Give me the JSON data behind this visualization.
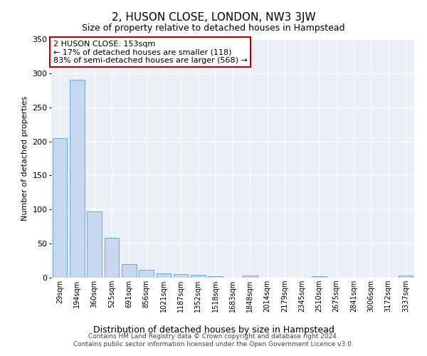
{
  "title": "2, HUSON CLOSE, LONDON, NW3 3JW",
  "subtitle": "Size of property relative to detached houses in Hampstead",
  "xlabel": "Distribution of detached houses by size in Hampstead",
  "ylabel": "Number of detached properties",
  "property_label": "2 HUSON CLOSE: 153sqm",
  "pct_smaller": 17,
  "n_smaller": 118,
  "pct_larger": 83,
  "n_larger": 568,
  "bar_color": "#c5d8f0",
  "bar_edge_color": "#6fa8d8",
  "highlight_color": "#c00000",
  "background_color": "#eaeff8",
  "grid_color": "#ffffff",
  "categories": [
    "29sqm",
    "194sqm",
    "360sqm",
    "525sqm",
    "691sqm",
    "856sqm",
    "1021sqm",
    "1187sqm",
    "1352sqm",
    "1518sqm",
    "1683sqm",
    "1848sqm",
    "2014sqm",
    "2179sqm",
    "2345sqm",
    "2510sqm",
    "2675sqm",
    "2841sqm",
    "3006sqm",
    "3172sqm",
    "3337sqm"
  ],
  "values": [
    205,
    290,
    97,
    58,
    20,
    11,
    6,
    5,
    4,
    2,
    0,
    3,
    0,
    0,
    0,
    2,
    0,
    0,
    0,
    0,
    3
  ],
  "ylim": [
    0,
    350
  ],
  "yticks": [
    0,
    50,
    100,
    150,
    200,
    250,
    300,
    350
  ],
  "footer_line1": "Contains HM Land Registry data © Crown copyright and database right 2024.",
  "footer_line2": "Contains public sector information licensed under the Open Government Licence v3.0."
}
